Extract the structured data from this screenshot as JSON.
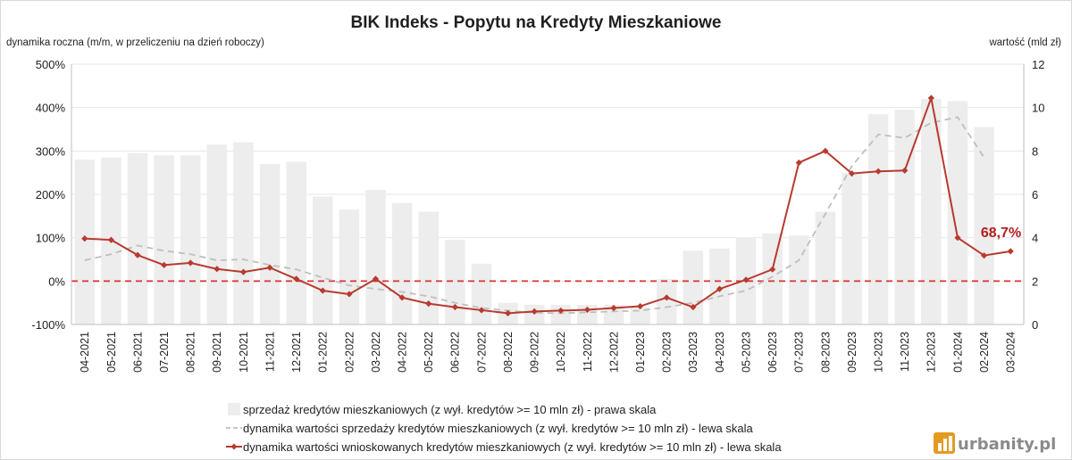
{
  "chart_data": {
    "type": "bar+line",
    "title": "BIK Indeks - Popytu na Kredyty Mieszkaniowe",
    "ylabel_left": "dynamika roczna (m/m, w przeliczeniu na dzień roboczy)",
    "ylabel_right": "wartość (mld zł)",
    "yticks_left": [
      "-100%",
      "0%",
      "100%",
      "200%",
      "300%",
      "400%",
      "500%"
    ],
    "yticks_right": [
      "0",
      "2",
      "4",
      "6",
      "8",
      "10",
      "12"
    ],
    "ylim_left": [
      -100,
      500
    ],
    "ylim_right": [
      0,
      12
    ],
    "categories": [
      "04-2021",
      "05-2021",
      "06-2021",
      "07-2021",
      "08-2021",
      "09-2021",
      "10-2021",
      "11-2021",
      "12-2021",
      "01-2022",
      "02-2022",
      "03-2022",
      "04-2022",
      "05-2022",
      "06-2022",
      "07-2022",
      "08-2022",
      "09-2022",
      "10-2022",
      "11-2022",
      "12-2022",
      "01-2023",
      "02-2023",
      "03-2023",
      "04-2023",
      "05-2023",
      "06-2023",
      "07-2023",
      "08-2023",
      "09-2023",
      "10-2023",
      "11-2023",
      "12-2023",
      "01-2024",
      "02-2024",
      "03-2024"
    ],
    "series": [
      {
        "name": "sprzedaż kredytów mieszkaniowych (z wył. kredytów >= 10 mln zł) - prawa skala",
        "type": "bar",
        "axis": "right",
        "color": "#ededed",
        "values": [
          7.6,
          7.7,
          7.9,
          7.8,
          7.8,
          8.3,
          8.4,
          7.4,
          7.5,
          5.9,
          5.3,
          6.2,
          5.6,
          5.2,
          3.9,
          2.8,
          1.0,
          0.9,
          0.9,
          0.9,
          0.9,
          0.8,
          2.1,
          3.4,
          3.5,
          4.0,
          4.2,
          4.1,
          5.2,
          7.0,
          9.7,
          9.9,
          10.4,
          10.3,
          9.1,
          null
        ]
      },
      {
        "name": "dynamika wartości sprzedaży kredytów mieszkaniowych (z wył. kredytów >= 10 mln zł) - lewa skala",
        "type": "line",
        "style": "dashed",
        "axis": "left",
        "color": "#bfbfbf",
        "values": [
          48,
          62,
          82,
          70,
          62,
          48,
          50,
          37,
          27,
          8,
          -10,
          -18,
          -25,
          -35,
          -50,
          -62,
          -68,
          -73,
          -74,
          -72,
          -70,
          -68,
          -60,
          -50,
          -35,
          -22,
          10,
          48,
          155,
          265,
          338,
          330,
          365,
          378,
          285,
          null
        ]
      },
      {
        "name": "dynamika wartości wnioskowanych kredytów mieszkaniowych (z wył. kredytów >= 10 mln zł) - lewa skala",
        "type": "line",
        "style": "solid-diamond",
        "axis": "left",
        "color": "#b83a2e",
        "values": [
          98,
          95,
          60,
          37,
          42,
          28,
          21,
          31,
          5,
          -22,
          -30,
          5,
          -38,
          -52,
          -60,
          -67,
          -74,
          -70,
          -68,
          -66,
          -62,
          -58,
          -38,
          -60,
          -18,
          3,
          27,
          273,
          300,
          248,
          253,
          255,
          422,
          100,
          59,
          68.7
        ]
      }
    ],
    "reference_line": {
      "value": 0,
      "axis": "left",
      "style": "dashed",
      "color": "#e03c3c"
    },
    "annotations": [
      {
        "text": "68,7%",
        "category": "03-2024",
        "color": "#b31f1f"
      }
    ],
    "grid": "horizontal",
    "legend_position": "bottom"
  },
  "watermark": {
    "text": "urbanity.pl",
    "logo": "urbanity-logo-icon"
  }
}
